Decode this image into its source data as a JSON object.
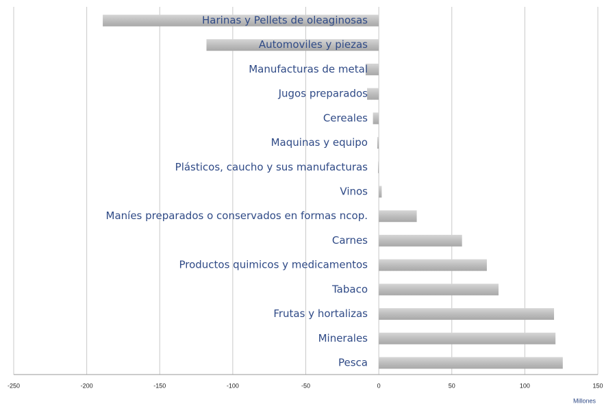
{
  "chart_data": {
    "type": "hbar",
    "categories": [
      "Harinas y Pellets de oleaginosas",
      "Automoviles y piezas",
      "Manufacturas de metal",
      "Jugos preparados",
      "Cereales",
      "Maquinas y equipo",
      "Plásticos, caucho y sus manufacturas",
      "Vinos",
      "Maníes preparados o conservados en formas ncop.",
      "Carnes",
      "Productos quimicos y medicamentos",
      "Tabaco",
      "Frutas y hortalizas",
      "Minerales",
      "Pesca"
    ],
    "values": [
      -189,
      -118,
      -9,
      -8,
      -4,
      -1,
      -0.5,
      2,
      26,
      57,
      74,
      82,
      120,
      121,
      126
    ],
    "color": "#bdbdbd",
    "xlim": [
      -250,
      150
    ],
    "xticks": [
      -250,
      -200,
      -150,
      -100,
      -50,
      0,
      50,
      100,
      150
    ],
    "xlabel": "Millones",
    "grid": true
  }
}
